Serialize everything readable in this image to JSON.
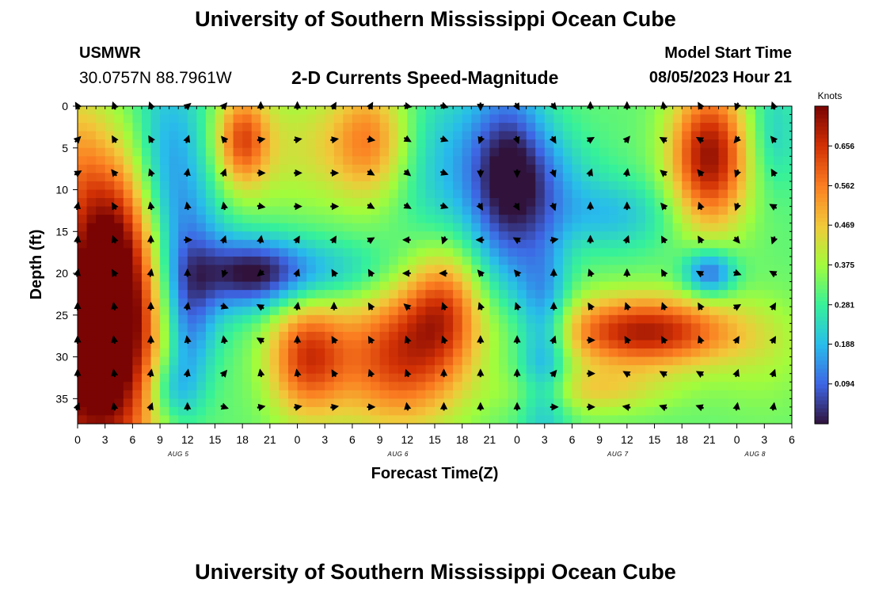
{
  "header": {
    "title": "University of Southern Mississippi Ocean Cube",
    "station": "USMWR",
    "coords": "30.0757N  88.7961W",
    "subtitle": "2-D Currents Speed-Magnitude",
    "start_label": "Model Start Time",
    "start_value": "08/05/2023 Hour 21"
  },
  "footer": {
    "title": "University of Southern Mississippi Ocean Cube"
  },
  "colors": {
    "scale": [
      "#30123b",
      "#3e65e4",
      "#28bceb",
      "#36f19a",
      "#a2fc3c",
      "#f2c93a",
      "#fb7e21",
      "#d23105",
      "#7a0403"
    ]
  },
  "chart_data": {
    "type": "heatmap",
    "title": "2-D Currents Speed-Magnitude",
    "xlabel": "Forecast Time(Z)",
    "ylabel": "Depth (ft)",
    "x_ticks": [
      "0",
      "3",
      "6",
      "9",
      "12",
      "15",
      "18",
      "21",
      "0",
      "3",
      "6",
      "9",
      "12",
      "15",
      "18",
      "21",
      "0",
      "3",
      "6",
      "9",
      "12",
      "15",
      "18",
      "21",
      "0",
      "3",
      "6"
    ],
    "x_range_hours": [
      0,
      78
    ],
    "date_labels": [
      {
        "label": "AUG 5",
        "hour": 11
      },
      {
        "label": "AUG 6",
        "hour": 35
      },
      {
        "label": "AUG 7",
        "hour": 59
      },
      {
        "label": "AUG 8",
        "hour": 74
      }
    ],
    "y_ticks": [
      0,
      5,
      10,
      15,
      20,
      25,
      30,
      35
    ],
    "y_range_ft": [
      0,
      38
    ],
    "colorbar": {
      "label": "Knots",
      "ticks": [
        "0.656",
        "0.562",
        "0.469",
        "0.375",
        "0.281",
        "0.188",
        "0.094"
      ],
      "range": [
        0.0,
        0.75
      ]
    },
    "speed_background": 0.32,
    "speed_features": [
      {
        "h": 2,
        "d": 30,
        "sh": 5,
        "sd": 11,
        "v": 0.5
      },
      {
        "h": 4,
        "d": 17,
        "sh": 3,
        "sd": 9,
        "v": 0.3
      },
      {
        "h": 0,
        "d": 6,
        "sh": 2,
        "sd": 7,
        "v": 0.12
      },
      {
        "h": 10,
        "d": 7,
        "sh": 3,
        "sd": 9,
        "v": -0.17
      },
      {
        "h": 12,
        "d": 26,
        "sh": 2,
        "sd": 7,
        "v": -0.18
      },
      {
        "h": 10,
        "d": 34,
        "sh": 2,
        "sd": 3,
        "v": -0.14
      },
      {
        "h": 13,
        "d": 19,
        "sh": 3,
        "sd": 7,
        "v": -0.1
      },
      {
        "h": 18,
        "d": 4,
        "sh": 2,
        "sd": 4,
        "v": 0.27
      },
      {
        "h": 25,
        "d": 5,
        "sh": 6,
        "sd": 5,
        "v": 0.1
      },
      {
        "h": 32,
        "d": 4,
        "sh": 3,
        "sd": 5,
        "v": 0.2
      },
      {
        "h": 19,
        "d": 20,
        "sh": 4,
        "sd": 3,
        "v": -0.27
      },
      {
        "h": 27,
        "d": 20,
        "sh": 6,
        "sd": 3,
        "v": -0.13
      },
      {
        "h": 25,
        "d": 30,
        "sh": 3,
        "sd": 5,
        "v": 0.3
      },
      {
        "h": 35,
        "d": 30,
        "sh": 5,
        "sd": 6,
        "v": 0.32
      },
      {
        "h": 40,
        "d": 24,
        "sh": 3,
        "sd": 5,
        "v": 0.24
      },
      {
        "h": 40,
        "d": 7,
        "sh": 4,
        "sd": 7,
        "v": -0.12
      },
      {
        "h": 47,
        "d": 9,
        "sh": 3,
        "sd": 9,
        "v": -0.28
      },
      {
        "h": 51,
        "d": 28,
        "sh": 2,
        "sd": 9,
        "v": -0.2
      },
      {
        "h": 51,
        "d": 8,
        "sh": 4,
        "sd": 4,
        "v": -0.1
      },
      {
        "h": 58,
        "d": 13,
        "sh": 5,
        "sd": 3,
        "v": -0.12
      },
      {
        "h": 62,
        "d": 27,
        "sh": 7,
        "sd": 3,
        "v": 0.38
      },
      {
        "h": 56,
        "d": 34,
        "sh": 6,
        "sd": 2,
        "v": 0.13
      },
      {
        "h": 69,
        "d": 6,
        "sh": 3,
        "sd": 6,
        "v": 0.4
      },
      {
        "h": 69,
        "d": 20,
        "sh": 2,
        "sd": 2,
        "v": -0.24
      },
      {
        "h": 75,
        "d": 30,
        "sh": 4,
        "sd": 5,
        "v": 0.05
      },
      {
        "h": 76,
        "d": 3,
        "sh": 2,
        "sd": 5,
        "v": -0.1
      }
    ],
    "vector_columns_hours": [
      0,
      4,
      8,
      12,
      16,
      20,
      24,
      28,
      32,
      36,
      40,
      44,
      48,
      52,
      56,
      60,
      64,
      68,
      72,
      76
    ],
    "vector_rows_ft": [
      0,
      4,
      8,
      12,
      16,
      20,
      24,
      28,
      32,
      36
    ],
    "vector_direction_deg": [
      [
        330,
        45,
        60,
        10,
        5,
        10,
        0,
        0,
        0,
        20
      ],
      [
        340,
        330,
        320,
        330,
        340,
        330,
        350,
        350,
        350,
        350
      ],
      [
        340,
        330,
        340,
        350,
        0,
        10,
        0,
        0,
        10,
        20
      ],
      [
        50,
        20,
        10,
        350,
        90,
        0,
        10,
        350,
        10,
        0
      ],
      [
        40,
        320,
        20,
        350,
        20,
        200,
        110,
        350,
        40,
        110
      ],
      [
        0,
        80,
        90,
        100,
        10,
        230,
        300,
        300,
        350,
        80
      ],
      [
        0,
        80,
        90,
        90,
        30,
        20,
        10,
        0,
        350,
        80
      ],
      [
        30,
        80,
        90,
        90,
        30,
        330,
        0,
        330,
        330,
        80
      ],
      [
        30,
        100,
        120,
        120,
        60,
        330,
        330,
        330,
        340,
        90
      ],
      [
        100,
        120,
        130,
        120,
        270,
        270,
        310,
        340,
        340,
        350
      ],
      [
        110,
        110,
        110,
        110,
        200,
        270,
        340,
        340,
        0,
        0
      ],
      [
        180,
        200,
        180,
        150,
        270,
        320,
        340,
        0,
        0,
        0
      ],
      [
        150,
        160,
        180,
        150,
        300,
        320,
        340,
        0,
        0,
        0
      ],
      [
        140,
        150,
        160,
        160,
        80,
        0,
        0,
        20,
        40,
        90
      ],
      [
        0,
        60,
        20,
        0,
        0,
        340,
        330,
        90,
        90,
        90
      ],
      [
        0,
        40,
        10,
        0,
        20,
        0,
        340,
        330,
        300,
        280
      ],
      [
        350,
        300,
        310,
        320,
        330,
        330,
        340,
        330,
        300,
        290
      ],
      [
        330,
        300,
        320,
        340,
        330,
        300,
        330,
        340,
        300,
        290
      ],
      [
        200,
        220,
        200,
        200,
        140,
        110,
        60,
        30,
        20,
        10
      ],
      [
        340,
        320,
        330,
        300,
        200,
        300,
        30,
        30,
        20,
        10
      ]
    ]
  }
}
